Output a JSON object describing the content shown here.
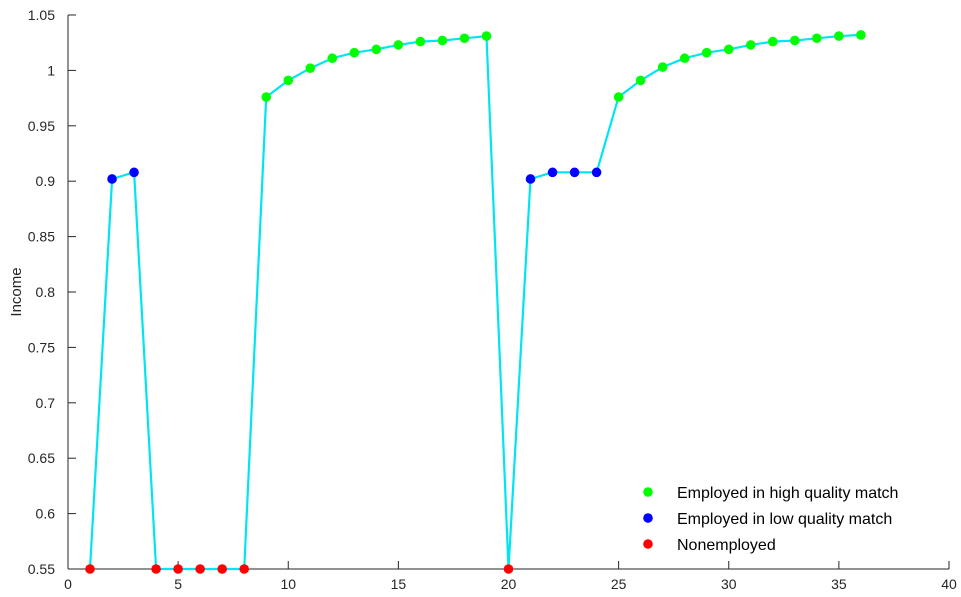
{
  "chart_data": {
    "type": "line",
    "title": "",
    "xlabel": "",
    "ylabel": "Income",
    "xlim": [
      0,
      40
    ],
    "ylim": [
      0.55,
      1.05
    ],
    "xticks": [
      0,
      5,
      10,
      15,
      20,
      25,
      30,
      35,
      40
    ],
    "yticks": [
      0.55,
      0.6,
      0.65,
      0.7,
      0.75,
      0.8,
      0.85,
      0.9,
      0.95,
      1,
      1.05
    ],
    "ytick_labels": [
      "0.55",
      "0.6",
      "0.65",
      "0.7",
      "0.75",
      "0.8",
      "0.85",
      "0.9",
      "0.95",
      "1",
      "1.05"
    ],
    "grid": false,
    "legend_position": "bottom-right",
    "line_color": "#00e6f0",
    "x": [
      1,
      2,
      3,
      4,
      5,
      6,
      7,
      8,
      9,
      10,
      11,
      12,
      13,
      14,
      15,
      16,
      17,
      18,
      19,
      20,
      21,
      22,
      23,
      24,
      25,
      26,
      27,
      28,
      29,
      30,
      31,
      32,
      33,
      34,
      35,
      36
    ],
    "y": [
      0.55,
      0.902,
      0.908,
      0.55,
      0.55,
      0.55,
      0.55,
      0.55,
      0.976,
      0.991,
      1.002,
      1.011,
      1.016,
      1.019,
      1.023,
      1.026,
      1.027,
      1.029,
      1.031,
      0.55,
      0.902,
      0.908,
      0.908,
      0.908,
      0.976,
      0.991,
      1.003,
      1.011,
      1.016,
      1.019,
      1.023,
      1.026,
      1.027,
      1.029,
      1.031,
      1.032
    ],
    "state": [
      2,
      1,
      1,
      2,
      2,
      2,
      2,
      2,
      0,
      0,
      0,
      0,
      0,
      0,
      0,
      0,
      0,
      0,
      0,
      2,
      1,
      1,
      1,
      1,
      0,
      0,
      0,
      0,
      0,
      0,
      0,
      0,
      0,
      0,
      0,
      0
    ],
    "series": [
      {
        "name": "Employed in high quality match",
        "color": "#00ff00"
      },
      {
        "name": "Employed in low quality match",
        "color": "#0000ff"
      },
      {
        "name": "Nonemployed",
        "color": "#ff0000"
      }
    ]
  }
}
